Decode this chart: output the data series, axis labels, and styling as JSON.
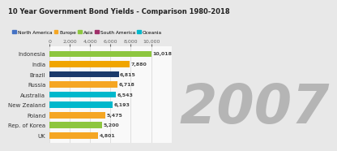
{
  "title": "10 Year Government Bond Yields - Comparison 1980-2018",
  "year_label": "2007",
  "categories": [
    "Indonesia",
    "India",
    "Brazil",
    "Russia",
    "Australia",
    "New Zealand",
    "Poland",
    "Rep. of Korea",
    "UK"
  ],
  "values": [
    10018,
    7880,
    6815,
    6718,
    6543,
    6193,
    5475,
    5200,
    4801
  ],
  "colors": [
    "#8dc63f",
    "#f0a500",
    "#1b3a6b",
    "#f5a623",
    "#00b8cc",
    "#00b8cc",
    "#f5a623",
    "#8dc63f",
    "#f5a623"
  ],
  "legend": {
    "North America": "#4472c4",
    "Europe": "#f5a623",
    "Asia": "#8dc63f",
    "South America": "#a0306a",
    "Oceania": "#00b8cc"
  },
  "xmax": 12000,
  "xticks": [
    0,
    2000,
    4000,
    6000,
    8000,
    10000
  ],
  "xtick_labels": [
    "0",
    "2,000",
    "4,000",
    "6,000",
    "8,000",
    "10,000"
  ],
  "background": "#e8e8e8",
  "plot_bg": "#f9f9f9",
  "title_color": "#222222",
  "year_color": "#b0b0b0",
  "bar_height": 0.62,
  "value_label_size": 4.5,
  "year_fontsize": 48,
  "title_fontsize": 6.0,
  "legend_fontsize": 4.2,
  "ytick_fontsize": 5.0
}
